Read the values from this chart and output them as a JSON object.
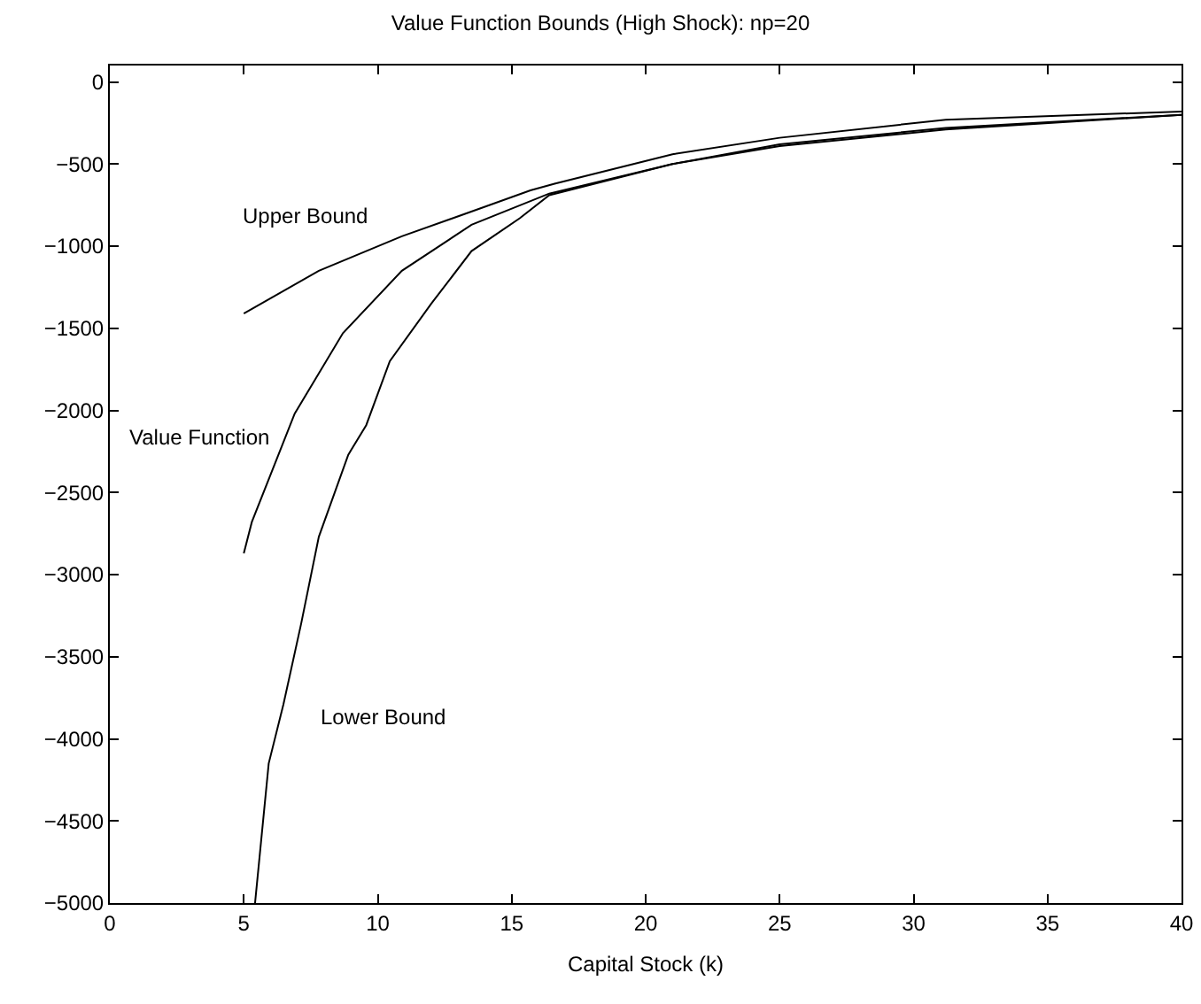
{
  "chart_data": {
    "type": "line",
    "title": "Value Function Bounds (High Shock): np=20",
    "xlabel": "Capital Stock (k)",
    "xlim": [
      0,
      40
    ],
    "xticks": [
      0,
      5,
      10,
      15,
      20,
      25,
      30,
      35,
      40
    ],
    "ylim": [
      -5000,
      100
    ],
    "yticks": [
      0,
      -500,
      -1000,
      -1500,
      -2000,
      -2500,
      -3000,
      -3500,
      -4000,
      -4500,
      -5000
    ],
    "grid": false,
    "legend": false,
    "marker": "none",
    "line_style": "solid",
    "series": [
      {
        "name": "Upper Bound",
        "color": "#000000",
        "x": [
          5,
          7.8,
          10.9,
          14,
          15.7,
          16.6,
          21,
          25,
          31.2,
          40
        ],
        "values": [
          -1410,
          -1150,
          -940,
          -760,
          -660,
          -620,
          -440,
          -340,
          -230,
          -180
        ]
      },
      {
        "name": "Value Function",
        "color": "#000000",
        "x": [
          5,
          5.3,
          6.9,
          8.7,
          10.9,
          13.5,
          16.4,
          21,
          25,
          31.2,
          40
        ],
        "values": [
          -2870,
          -2680,
          -2020,
          -1530,
          -1150,
          -870,
          -680,
          -500,
          -380,
          -280,
          -200
        ]
      },
      {
        "name": "Lower Bound",
        "color": "#000000",
        "x": [
          5.42,
          5.93,
          6.48,
          7.14,
          7.8,
          8.9,
          9.57,
          10.45,
          12,
          13.5,
          15.3,
          16.4,
          21,
          25,
          31.2,
          40
        ],
        "values": [
          -5000,
          -4150,
          -3790,
          -3300,
          -2770,
          -2270,
          -2090,
          -1700,
          -1350,
          -1030,
          -830,
          -690,
          -500,
          -390,
          -290,
          -200
        ]
      }
    ]
  }
}
